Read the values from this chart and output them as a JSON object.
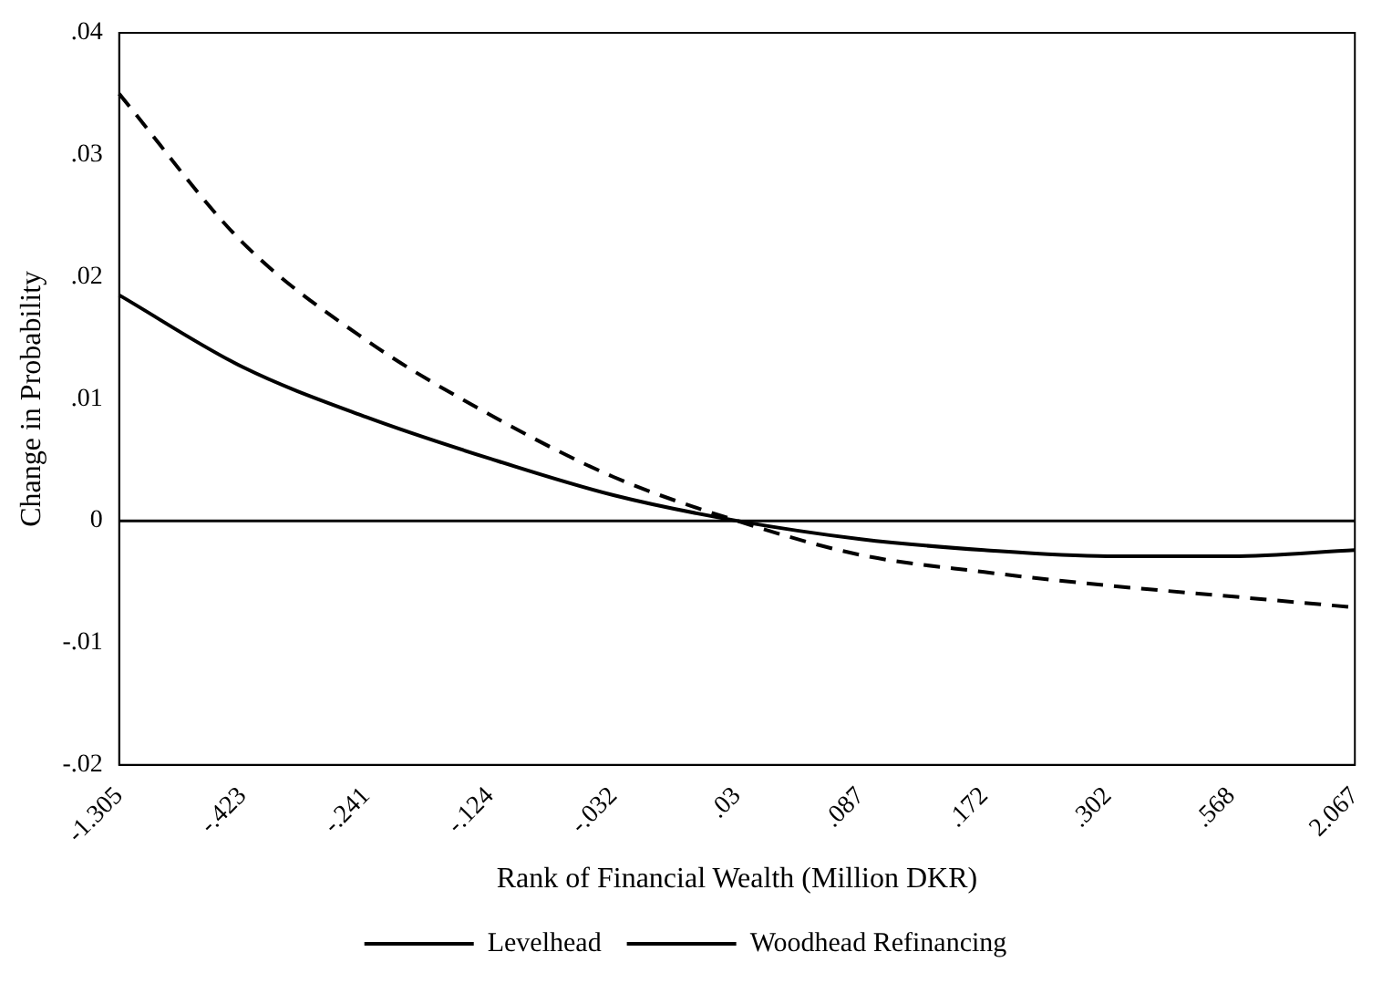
{
  "chart_data": {
    "type": "line",
    "xlabel": "Rank of Financial Wealth (Million DKR)",
    "ylabel": "Change in Probability",
    "categories": [
      "-1.305",
      "-.423",
      "-.241",
      "-.124",
      "-.032",
      ".03",
      ".087",
      ".172",
      ".302",
      ".568",
      "2.067"
    ],
    "series": [
      {
        "name": "Levelhead",
        "color": "#000000",
        "line_style": "solid",
        "values": [
          0.0185,
          0.0126,
          0.0085,
          0.0051,
          0.0021,
          0,
          -0.0015,
          -0.0024,
          -0.0029,
          -0.0029,
          -0.0024
        ]
      },
      {
        "name": "Woodhead Refinancing",
        "color": "#000000",
        "line_style": "dashed",
        "values": [
          0.035,
          0.0228,
          0.0148,
          0.0087,
          0.0036,
          0,
          -0.0028,
          -0.0042,
          -0.0053,
          -0.0062,
          -0.0071
        ]
      }
    ],
    "ylim": [
      -0.02,
      0.04
    ],
    "yticks": [
      {
        "value": -0.02,
        "label": "-.02"
      },
      {
        "value": -0.01,
        "label": "-.01"
      },
      0,
      {
        "value": 0.01,
        "label": ".01"
      },
      {
        "value": 0.02,
        "label": ".02"
      },
      {
        "value": 0.03,
        "label": ".03"
      },
      {
        "value": 0.04,
        "label": ".04"
      }
    ],
    "ref_lines": [
      {
        "axis": "y",
        "value": 0,
        "color": "#000000"
      }
    ],
    "grid": false,
    "legend": "bottom",
    "marker": "none"
  }
}
